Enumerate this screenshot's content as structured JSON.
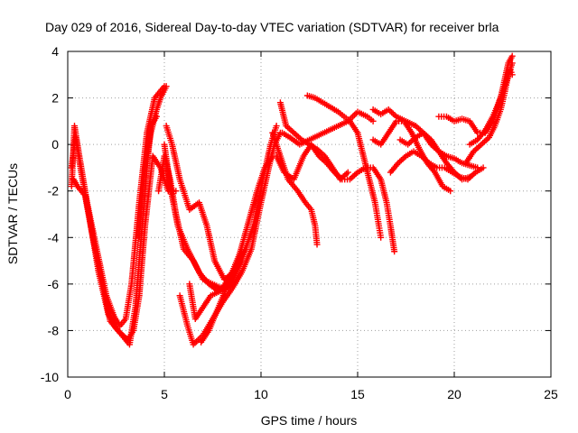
{
  "chart_data": {
    "type": "scatter",
    "title": "Day 029 of 2016, Sidereal Day-to-day VTEC variation (SDTVAR) for receiver brla",
    "xlabel": "GPS time / hours",
    "ylabel": "SDTVAR / TECUs",
    "xlim": [
      0,
      25
    ],
    "ylim": [
      -10,
      4
    ],
    "xticks": [
      "0",
      "5",
      "10",
      "15",
      "20",
      "25"
    ],
    "yticks": [
      "-10",
      "-8",
      "-6",
      "-4",
      "-2",
      "0",
      "2",
      "4"
    ],
    "grid": true,
    "marker": "+",
    "color": "#ff0000",
    "series": [
      {
        "points": [
          [
            0.2,
            -1.8
          ],
          [
            0.35,
            0.8
          ],
          [
            0.6,
            -0.5
          ],
          [
            1.0,
            -2.5
          ],
          [
            1.5,
            -4.5
          ],
          [
            2.0,
            -6.5
          ],
          [
            2.4,
            -7.4
          ],
          [
            2.7,
            -7.8
          ],
          [
            3.0,
            -7.5
          ],
          [
            3.3,
            -6.0
          ],
          [
            3.7,
            -2.5
          ],
          [
            4.1,
            0.5
          ],
          [
            4.5,
            2.0
          ],
          [
            5.0,
            2.5
          ]
        ]
      },
      {
        "points": [
          [
            0.3,
            -1.5
          ],
          [
            0.5,
            -1.8
          ],
          [
            0.9,
            -2.2
          ],
          [
            1.3,
            -4.0
          ],
          [
            1.8,
            -6.0
          ],
          [
            2.2,
            -7.6
          ],
          [
            2.6,
            -8.0
          ],
          [
            3.1,
            -8.4
          ],
          [
            3.4,
            -8.0
          ],
          [
            3.7,
            -6.5
          ],
          [
            4.0,
            -3.5
          ],
          [
            4.4,
            -0.5
          ],
          [
            4.8,
            -1.0
          ],
          [
            5.2,
            -2.0
          ],
          [
            5.6,
            -2.0
          ]
        ]
      },
      {
        "points": [
          [
            0.2,
            -1.0
          ],
          [
            0.4,
            0.3
          ],
          [
            0.7,
            -1.2
          ],
          [
            1.1,
            -3.0
          ],
          [
            1.6,
            -5.5
          ],
          [
            2.1,
            -7.3
          ],
          [
            2.5,
            -7.9
          ],
          [
            2.9,
            -8.3
          ],
          [
            3.2,
            -8.6
          ],
          [
            3.5,
            -7.0
          ],
          [
            3.8,
            -4.0
          ],
          [
            4.1,
            -1.0
          ],
          [
            4.3,
            0.8
          ],
          [
            4.6,
            1.2
          ]
        ]
      },
      {
        "points": [
          [
            3.7,
            -4.0
          ],
          [
            4.0,
            -1.0
          ],
          [
            4.3,
            0.5
          ],
          [
            4.6,
            1.5
          ],
          [
            4.8,
            2.0
          ],
          [
            5.1,
            2.5
          ]
        ]
      },
      {
        "points": [
          [
            4.7,
            -2.0
          ],
          [
            5.0,
            -0.5
          ],
          [
            5.3,
            -1.5
          ],
          [
            5.6,
            -3.0
          ],
          [
            6.0,
            -4.5
          ],
          [
            6.5,
            -5.0
          ],
          [
            7.0,
            -5.8
          ],
          [
            7.5,
            -6.0
          ],
          [
            8.0,
            -6.2
          ],
          [
            8.5,
            -5.5
          ],
          [
            9.0,
            -4.5
          ]
        ]
      },
      {
        "points": [
          [
            5.0,
            0.0
          ],
          [
            5.3,
            -1.8
          ],
          [
            5.7,
            -3.5
          ],
          [
            6.2,
            -4.5
          ],
          [
            6.8,
            -5.5
          ],
          [
            7.3,
            -6.0
          ],
          [
            7.8,
            -6.3
          ],
          [
            8.3,
            -6.0
          ],
          [
            8.8,
            -5.0
          ],
          [
            9.2,
            -4.5
          ]
        ]
      },
      {
        "points": [
          [
            5.1,
            0.8
          ],
          [
            5.4,
            0.0
          ],
          [
            5.8,
            -1.5
          ],
          [
            6.3,
            -2.8
          ],
          [
            6.8,
            -2.5
          ],
          [
            7.2,
            -3.5
          ],
          [
            7.6,
            -5.0
          ],
          [
            8.1,
            -5.8
          ],
          [
            8.6,
            -5.5
          ],
          [
            9.0,
            -5.0
          ]
        ]
      },
      {
        "points": [
          [
            5.8,
            -6.5
          ],
          [
            6.2,
            -7.8
          ],
          [
            6.5,
            -8.6
          ],
          [
            7.0,
            -8.2
          ],
          [
            7.5,
            -7.5
          ],
          [
            8.0,
            -6.8
          ],
          [
            8.5,
            -6.2
          ],
          [
            9.0,
            -5.5
          ],
          [
            9.5,
            -4.5
          ],
          [
            10.0,
            -2.5
          ],
          [
            10.4,
            -1.0
          ],
          [
            10.7,
            0.0
          ],
          [
            11.0,
            0.5
          ]
        ]
      },
      {
        "points": [
          [
            6.9,
            -8.5
          ],
          [
            7.3,
            -8.0
          ],
          [
            7.8,
            -7.0
          ],
          [
            8.3,
            -6.0
          ],
          [
            8.8,
            -5.0
          ],
          [
            9.3,
            -3.5
          ],
          [
            9.8,
            -2.0
          ],
          [
            10.2,
            -1.0
          ],
          [
            10.6,
            -0.5
          ]
        ]
      },
      {
        "points": [
          [
            6.3,
            -6.0
          ],
          [
            6.6,
            -7.5
          ],
          [
            7.0,
            -7.0
          ],
          [
            7.4,
            -6.5
          ],
          [
            7.9,
            -6.3
          ],
          [
            8.4,
            -6.1
          ],
          [
            9.0,
            -5.0
          ],
          [
            9.6,
            -3.5
          ],
          [
            10.1,
            -1.5
          ],
          [
            10.5,
            0.0
          ],
          [
            10.8,
            0.8
          ]
        ]
      },
      {
        "points": [
          [
            10.6,
            0.5
          ],
          [
            11.0,
            -0.5
          ],
          [
            11.4,
            -1.5
          ],
          [
            11.9,
            -2.0
          ],
          [
            12.3,
            -2.5
          ],
          [
            12.6,
            -2.8
          ],
          [
            12.8,
            -3.5
          ],
          [
            12.9,
            -4.3
          ]
        ]
      },
      {
        "points": [
          [
            10.8,
            -0.5
          ],
          [
            11.2,
            -1.2
          ],
          [
            11.7,
            -1.5
          ],
          [
            12.2,
            -0.5
          ],
          [
            12.6,
            0.0
          ],
          [
            13.0,
            -0.5
          ],
          [
            13.4,
            -0.8
          ],
          [
            13.8,
            -1.2
          ],
          [
            14.2,
            -1.5
          ],
          [
            14.6,
            -1.5
          ],
          [
            15.0,
            -1.2
          ],
          [
            15.4,
            -1.0
          ],
          [
            15.8,
            -1.0
          ],
          [
            16.2,
            -1.5
          ],
          [
            16.5,
            -2.5
          ],
          [
            16.7,
            -3.5
          ],
          [
            16.9,
            -4.6
          ]
        ]
      },
      {
        "points": [
          [
            11.0,
            1.8
          ],
          [
            11.3,
            0.8
          ],
          [
            11.7,
            0.5
          ],
          [
            12.1,
            0.2
          ],
          [
            12.5,
            0.0
          ],
          [
            12.9,
            -0.2
          ],
          [
            13.3,
            -0.5
          ],
          [
            13.7,
            -1.0
          ],
          [
            14.1,
            -1.5
          ],
          [
            14.5,
            -1.2
          ]
        ]
      },
      {
        "points": [
          [
            11.1,
            0.5
          ],
          [
            11.5,
            0.3
          ],
          [
            12.0,
            0.0
          ],
          [
            12.5,
            0.2
          ],
          [
            13.0,
            0.4
          ],
          [
            13.5,
            0.6
          ],
          [
            14.0,
            0.8
          ],
          [
            14.5,
            1.0
          ],
          [
            15.0,
            1.4
          ],
          [
            15.5,
            1.2
          ],
          [
            15.8,
            1.0
          ]
        ]
      },
      {
        "points": [
          [
            12.4,
            2.1
          ],
          [
            12.8,
            2.0
          ],
          [
            13.2,
            1.8
          ],
          [
            13.6,
            1.6
          ],
          [
            14.0,
            1.4
          ],
          [
            14.3,
            1.2
          ],
          [
            14.6,
            1.0
          ],
          [
            15.0,
            0.5
          ],
          [
            15.3,
            -0.5
          ],
          [
            15.6,
            -1.5
          ],
          [
            15.9,
            -2.5
          ],
          [
            16.1,
            -3.5
          ],
          [
            16.2,
            -4.0
          ]
        ]
      },
      {
        "points": [
          [
            15.8,
            0.2
          ],
          [
            16.2,
            0.0
          ],
          [
            16.6,
            0.5
          ],
          [
            17.0,
            1.0
          ],
          [
            17.4,
            1.0
          ],
          [
            17.8,
            0.5
          ],
          [
            18.2,
            -0.2
          ],
          [
            18.6,
            -0.8
          ],
          [
            19.0,
            -1.2
          ],
          [
            19.4,
            -1.8
          ],
          [
            19.8,
            -2.0
          ]
        ]
      },
      {
        "points": [
          [
            15.8,
            1.5
          ],
          [
            16.2,
            1.3
          ],
          [
            16.6,
            1.5
          ],
          [
            17.0,
            1.2
          ],
          [
            17.5,
            1.0
          ],
          [
            18.0,
            0.8
          ],
          [
            18.4,
            0.5
          ],
          [
            18.8,
            0.0
          ],
          [
            19.2,
            -0.3
          ],
          [
            19.6,
            -0.5
          ],
          [
            20.0,
            -0.6
          ],
          [
            20.4,
            -0.8
          ],
          [
            20.8,
            -0.9
          ],
          [
            21.2,
            -1.0
          ]
        ]
      },
      {
        "points": [
          [
            16.7,
            -1.2
          ],
          [
            17.1,
            -0.8
          ],
          [
            17.5,
            -0.5
          ],
          [
            17.9,
            -0.3
          ],
          [
            18.3,
            -0.5
          ],
          [
            18.7,
            -0.8
          ],
          [
            19.1,
            -1.0
          ],
          [
            19.5,
            -1.0
          ],
          [
            19.9,
            -1.2
          ],
          [
            20.3,
            -1.4
          ],
          [
            20.7,
            -1.5
          ],
          [
            21.1,
            -1.2
          ],
          [
            21.5,
            -1.0
          ]
        ]
      },
      {
        "points": [
          [
            17.2,
            0.2
          ],
          [
            17.6,
            0.0
          ],
          [
            18.0,
            0.3
          ],
          [
            18.4,
            0.5
          ],
          [
            18.8,
            0.2
          ],
          [
            19.2,
            -0.3
          ],
          [
            19.6,
            -0.8
          ],
          [
            20.0,
            -1.2
          ],
          [
            20.4,
            -1.5
          ],
          [
            20.8,
            -1.4
          ]
        ]
      },
      {
        "points": [
          [
            19.2,
            1.2
          ],
          [
            19.6,
            1.2
          ],
          [
            20.0,
            1.0
          ],
          [
            20.4,
            1.1
          ],
          [
            20.8,
            1.0
          ],
          [
            21.2,
            0.5
          ],
          [
            21.6,
            0.5
          ],
          [
            22.0,
            1.0
          ],
          [
            22.4,
            2.0
          ],
          [
            22.8,
            3.5
          ],
          [
            23.0,
            3.8
          ]
        ]
      },
      {
        "points": [
          [
            20.6,
            -0.8
          ],
          [
            21.0,
            -0.3
          ],
          [
            21.4,
            0.0
          ],
          [
            21.8,
            0.3
          ],
          [
            22.1,
            0.8
          ],
          [
            22.4,
            1.5
          ],
          [
            22.6,
            2.2
          ],
          [
            22.8,
            3.0
          ],
          [
            23.0,
            3.5
          ]
        ]
      },
      {
        "points": [
          [
            20.8,
            0.0
          ],
          [
            21.2,
            0.2
          ],
          [
            21.6,
            0.6
          ],
          [
            22.0,
            1.2
          ],
          [
            22.3,
            1.8
          ],
          [
            22.6,
            2.5
          ],
          [
            22.9,
            3.2
          ],
          [
            23.0,
            3.0
          ]
        ]
      }
    ]
  }
}
